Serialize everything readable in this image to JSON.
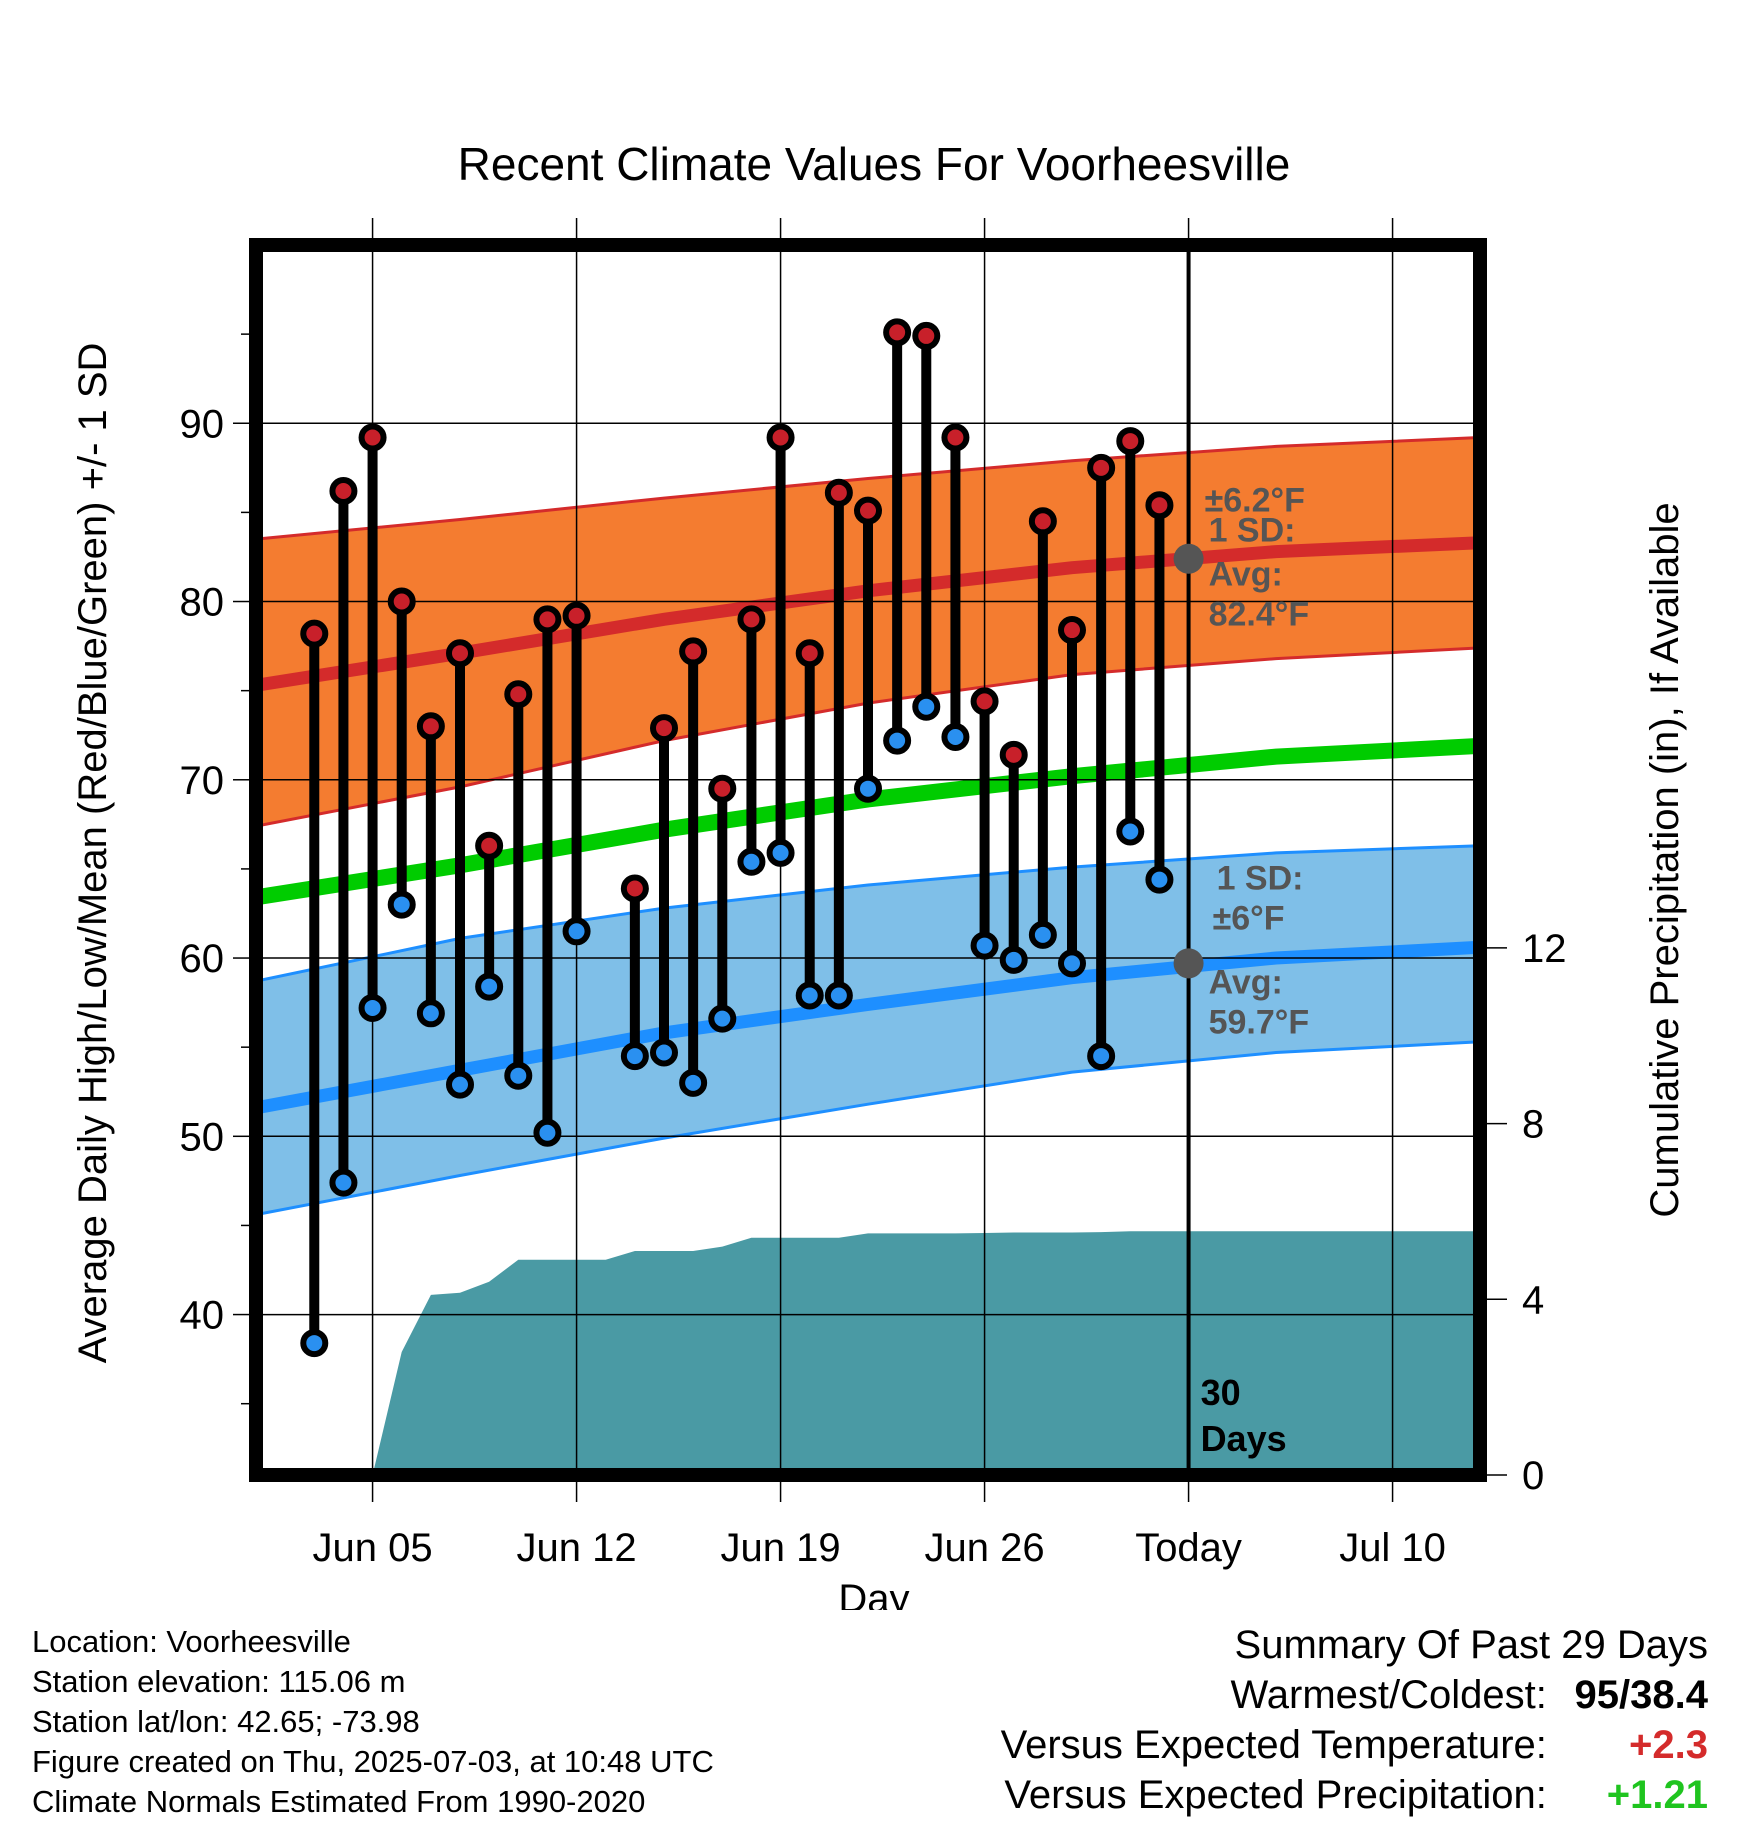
{
  "chart_data": {
    "type": "line",
    "title": "Recent Climate Values For Voorheesville",
    "xlabel": "Day",
    "ylabel": "Average Daily High/Low/Mean (Red/Blue/Green) +/- 1 SD",
    "y2label": "Cumulative Precipitation (in), If Available",
    "x_tick_labels": [
      "Jun 05",
      "Jun 12",
      "Jun 19",
      "Jun 26",
      "Today",
      "Jul 10"
    ],
    "x_tick_dates": [
      "2025-06-05",
      "2025-06-12",
      "2025-06-19",
      "2025-06-26",
      "2025-07-03",
      "2025-07-10"
    ],
    "x_range": [
      "2025-06-01",
      "2025-07-13"
    ],
    "y_ticks": [
      40,
      50,
      60,
      70,
      80,
      90
    ],
    "ylim": [
      31,
      100
    ],
    "y2_ticks": [
      0,
      4,
      8,
      12
    ],
    "y2lim": [
      0,
      28
    ],
    "grid": true,
    "today": "2025-07-03",
    "today_label": "30 Days",
    "daily": {
      "dates": [
        "2025-06-03",
        "2025-06-04",
        "2025-06-05",
        "2025-06-06",
        "2025-06-07",
        "2025-06-08",
        "2025-06-09",
        "2025-06-10",
        "2025-06-11",
        "2025-06-12",
        "2025-06-14",
        "2025-06-15",
        "2025-06-16",
        "2025-06-17",
        "2025-06-18",
        "2025-06-19",
        "2025-06-20",
        "2025-06-21",
        "2025-06-22",
        "2025-06-23",
        "2025-06-24",
        "2025-06-25",
        "2025-06-26",
        "2025-06-27",
        "2025-06-28",
        "2025-06-29",
        "2025-06-30",
        "2025-07-01",
        "2025-07-02"
      ],
      "high": [
        78.2,
        86.2,
        89.2,
        80.0,
        73.0,
        77.1,
        66.3,
        74.8,
        79.0,
        79.2,
        63.9,
        72.9,
        77.2,
        69.5,
        79.0,
        89.2,
        77.1,
        86.1,
        85.1,
        95.1,
        94.9,
        89.2,
        74.4,
        71.4,
        84.5,
        78.4,
        87.5,
        89.0,
        85.4
      ],
      "low": [
        38.4,
        47.4,
        57.2,
        63.0,
        56.9,
        52.9,
        58.4,
        53.4,
        50.2,
        61.5,
        54.5,
        54.7,
        53.0,
        56.6,
        65.4,
        65.9,
        57.9,
        57.9,
        69.5,
        72.2,
        74.1,
        72.4,
        60.7,
        59.9,
        61.3,
        59.7,
        54.5,
        67.1,
        64.4
      ]
    },
    "normals": {
      "dates": [
        "2025-06-01",
        "2025-06-08",
        "2025-06-15",
        "2025-06-22",
        "2025-06-29",
        "2025-07-06",
        "2025-07-13"
      ],
      "high_avg": [
        75.3,
        77.1,
        79.0,
        80.6,
        81.9,
        82.8,
        83.3
      ],
      "high_upper": [
        83.5,
        84.6,
        85.8,
        86.9,
        87.9,
        88.7,
        89.2
      ],
      "high_lower": [
        67.4,
        69.6,
        72.2,
        74.3,
        75.9,
        76.8,
        77.4
      ],
      "mean_avg": [
        63.4,
        65.2,
        67.2,
        68.9,
        70.2,
        71.3,
        71.9
      ],
      "low_avg": [
        51.6,
        53.7,
        55.8,
        57.4,
        58.9,
        60.0,
        60.6
      ],
      "low_upper": [
        58.7,
        61.1,
        62.8,
        64.1,
        65.1,
        65.9,
        66.3
      ],
      "low_lower": [
        45.6,
        47.8,
        49.9,
        51.8,
        53.6,
        54.7,
        55.3
      ]
    },
    "precip": {
      "dates": [
        "2025-06-05",
        "2025-06-06",
        "2025-06-07",
        "2025-06-08",
        "2025-06-09",
        "2025-06-10",
        "2025-06-11",
        "2025-06-12",
        "2025-06-13",
        "2025-06-14",
        "2025-06-15",
        "2025-06-16",
        "2025-06-17",
        "2025-06-18",
        "2025-06-19",
        "2025-06-20",
        "2025-06-21",
        "2025-06-22",
        "2025-06-23",
        "2025-06-24",
        "2025-06-25",
        "2025-06-26",
        "2025-06-27",
        "2025-06-28",
        "2025-06-29",
        "2025-06-30",
        "2025-07-01",
        "2025-07-13"
      ],
      "cumulative": [
        0.0,
        2.8,
        4.1,
        4.15,
        4.4,
        4.9,
        4.9,
        4.9,
        4.9,
        5.1,
        5.1,
        5.1,
        5.2,
        5.4,
        5.4,
        5.4,
        5.4,
        5.5,
        5.5,
        5.5,
        5.5,
        5.51,
        5.52,
        5.52,
        5.52,
        5.53,
        5.55,
        5.55
      ]
    },
    "annotations": {
      "high_sd_label": "1 SD:",
      "high_sd_value": "±6.2°F",
      "high_avg_label": "Avg:",
      "high_avg_value": "82.4°F",
      "high_avg_marker": 82.4,
      "low_sd_label": "1 SD:",
      "low_sd_value": "±6°F",
      "low_avg_label": "Avg:",
      "low_avg_value": "59.7°F",
      "low_avg_marker": 59.7
    },
    "colors": {
      "high_band": "#f47c30",
      "high_line": "#d42b2b",
      "high_band_edge": "#d42b2b",
      "mean_line": "#00cc00",
      "low_band": "#7fbfe8",
      "low_line": "#1e8fff",
      "low_band_edge": "#1e8fff",
      "precip": "#4a9aa4",
      "high_marker": "#c8202a",
      "low_marker": "#2a90f0",
      "avg_marker": "#555555"
    }
  },
  "footer": {
    "location": "Location: Voorheesville",
    "elevation": "Station elevation: 115.06 m",
    "latlon": "Station lat/lon: 42.65; -73.98",
    "created": "Figure created on Thu, 2025-07-03, at 10:48 UTC",
    "normals": "Climate Normals Estimated From 1990-2020"
  },
  "summary": {
    "title": "Summary Of Past 29 Days",
    "warm_cold_label": "Warmest/Coldest:",
    "warm_cold_value": "95/38.4",
    "temp_label": "Versus Expected Temperature:",
    "temp_value": "+2.3",
    "temp_color": "#d42b2b",
    "precip_label": "Versus Expected Precipitation:",
    "precip_value": "+1.21",
    "precip_color": "#1fc41f"
  }
}
